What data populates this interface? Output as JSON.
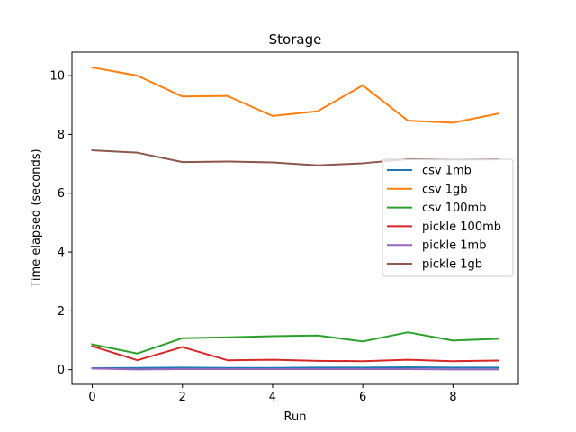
{
  "chart_data": {
    "type": "line",
    "title": "Storage",
    "xlabel": "Run",
    "ylabel": "Time elapsed (seconds)",
    "xlim": [
      -0.45,
      9.45
    ],
    "ylim": [
      -0.5,
      10.8
    ],
    "xticks": [
      0,
      2,
      4,
      6,
      8
    ],
    "yticks": [
      0,
      2,
      4,
      6,
      8,
      10
    ],
    "grid": false,
    "legend_position": "center-right",
    "x": [
      0,
      1,
      2,
      3,
      4,
      5,
      6,
      7,
      8,
      9
    ],
    "series": [
      {
        "name": "csv 1mb",
        "color": "#1f77b4",
        "values": [
          0.05,
          0.06,
          0.07,
          0.06,
          0.06,
          0.07,
          0.07,
          0.08,
          0.07,
          0.07
        ]
      },
      {
        "name": "csv 1gb",
        "color": "#ff7f0e",
        "values": [
          10.28,
          10.0,
          9.29,
          9.31,
          8.63,
          8.79,
          9.67,
          8.47,
          8.4,
          8.71
        ]
      },
      {
        "name": "csv 100mb",
        "color": "#2ca02c",
        "values": [
          0.86,
          0.55,
          1.07,
          1.1,
          1.14,
          1.16,
          0.96,
          1.27,
          0.99,
          1.05
        ]
      },
      {
        "name": "pickle 100mb",
        "color": "#d62728",
        "values": [
          0.8,
          0.32,
          0.77,
          0.32,
          0.34,
          0.3,
          0.29,
          0.34,
          0.29,
          0.31
        ]
      },
      {
        "name": "pickle 1mb",
        "color": "#9467bd",
        "values": [
          0.04,
          0.01,
          0.02,
          0.02,
          0.02,
          0.02,
          0.02,
          0.02,
          0.01,
          0.01
        ]
      },
      {
        "name": "pickle 1gb",
        "color": "#8c564b",
        "values": [
          7.46,
          7.38,
          7.06,
          7.08,
          7.05,
          6.95,
          7.02,
          7.16,
          7.14,
          7.15
        ]
      }
    ]
  }
}
